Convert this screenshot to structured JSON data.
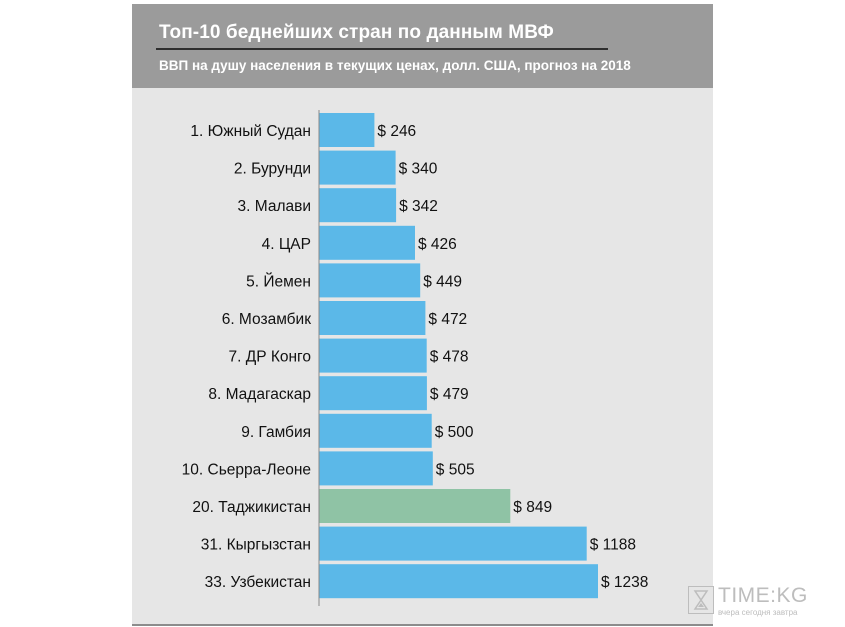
{
  "chart_data": {
    "type": "bar",
    "orientation": "horizontal",
    "title": "Топ-10 беднейших стран по данным МВФ",
    "subtitle": "ВВП на душу населения в текущих ценах, долл. США, прогноз на 2018",
    "value_prefix": "$ ",
    "categories": [
      "1. Южный Судан",
      "2. Бурунди",
      "3. Малави",
      "4. ЦАР",
      "5. Йемен",
      "6. Мозамбик",
      "7. ДР Конго",
      "8. Мадагаскар",
      "9. Гамбия",
      "10. Сьерра-Леоне",
      "20. Таджикистан",
      "31. Кыргызстан",
      "33. Узбекистан"
    ],
    "values": [
      246,
      340,
      342,
      426,
      449,
      472,
      478,
      479,
      500,
      505,
      849,
      1188,
      1238
    ],
    "highlight_index": 10,
    "colors": {
      "bar": "#5bb8e8",
      "highlight": "#8fc3a5",
      "axis": "#8a8a8a"
    },
    "grid": false,
    "legend": "none"
  },
  "watermark": {
    "brand": "TIME:KG",
    "tagline": "вчера сегодня завтра",
    "icon": "hourglass-icon"
  }
}
